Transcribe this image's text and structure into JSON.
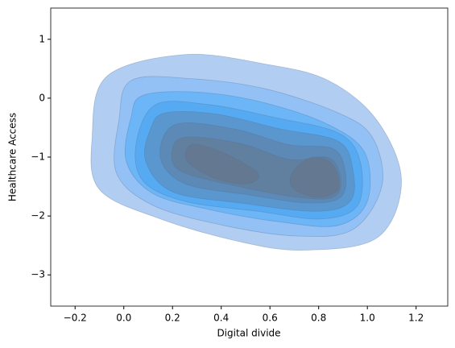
{
  "chart_data": {
    "type": "kde",
    "x_label": "Digital divide",
    "y_label": "Healthcare Access",
    "xlim": [
      -0.3,
      1.33
    ],
    "ylim": [
      -3.53,
      1.53
    ],
    "xticks": [
      {
        "value": -0.2,
        "label": "−0.2"
      },
      {
        "value": 0.0,
        "label": "0.0"
      },
      0.2,
      0.4,
      0.6,
      0.8,
      {
        "value": 1.0,
        "label": "1.0"
      },
      1.2
    ],
    "yticks": [
      1,
      0,
      {
        "value": -1,
        "label": "−1"
      },
      {
        "value": -2,
        "label": "−2"
      },
      {
        "value": -3,
        "label": "−3"
      }
    ],
    "contours": [
      {
        "color": "#b1cdf1",
        "x": [
          -0.07,
          0.25,
          0.58,
          0.84,
          1.04,
          1.14,
          1.04,
          0.74,
          0.48,
          0.15,
          -0.1,
          -0.13
        ],
        "y": [
          0.37,
          0.74,
          0.58,
          0.3,
          -0.38,
          -1.41,
          -2.37,
          -2.58,
          -2.44,
          -2.05,
          -1.55,
          -0.66
        ]
      },
      {
        "color": "#93c1f5",
        "x": [
          0.03,
          0.28,
          0.58,
          0.88,
          1.02,
          1.06,
          0.94,
          0.71,
          0.41,
          0.12,
          -0.03,
          -0.02
        ],
        "y": [
          0.3,
          0.33,
          0.16,
          -0.25,
          -0.66,
          -1.48,
          -2.23,
          -2.34,
          -2.16,
          -1.82,
          -1.27,
          -0.38
        ]
      },
      {
        "color": "#6cb5f7",
        "x": [
          0.08,
          0.31,
          0.58,
          0.84,
          0.99,
          1.0,
          0.88,
          0.64,
          0.35,
          0.12,
          0.01,
          0.03
        ],
        "y": [
          0.05,
          0.1,
          -0.08,
          -0.45,
          -0.93,
          -1.75,
          -2.16,
          -2.1,
          -1.89,
          -1.62,
          -1.07,
          -0.32
        ]
      },
      {
        "color": "#56aaf2",
        "x": [
          0.13,
          0.35,
          0.61,
          0.88,
          0.97,
          0.96,
          0.81,
          0.55,
          0.25,
          0.08,
          0.05
        ],
        "y": [
          -0.11,
          -0.11,
          -0.32,
          -0.59,
          -1.07,
          -1.82,
          -2.05,
          -1.92,
          -1.75,
          -1.41,
          -0.79
        ]
      },
      {
        "color": "#5a97cf",
        "x": [
          0.17,
          0.38,
          0.64,
          0.88,
          0.94,
          0.93,
          0.79,
          0.48,
          0.2,
          0.09,
          0.11
        ],
        "y": [
          -0.25,
          -0.27,
          -0.52,
          -0.73,
          -1.21,
          -1.75,
          -1.92,
          -1.78,
          -1.59,
          -1.07,
          -0.52
        ]
      },
      {
        "color": "#5d89b6",
        "x": [
          0.21,
          0.45,
          0.68,
          0.86,
          0.91,
          0.89,
          0.76,
          0.51,
          0.25,
          0.15
        ],
        "y": [
          -0.45,
          -0.52,
          -0.79,
          -0.86,
          -1.27,
          -1.68,
          -1.78,
          -1.64,
          -1.45,
          -1.0
        ]
      },
      {
        "color": "#61809f",
        "x": [
          0.26,
          0.48,
          0.68,
          0.84,
          0.89,
          0.86,
          0.71,
          0.45,
          0.23,
          0.2
        ],
        "y": [
          -0.66,
          -0.77,
          -1.04,
          -1.01,
          -1.37,
          -1.68,
          -1.68,
          -1.48,
          -1.23,
          -0.86
        ]
      },
      {
        "color": "#647892",
        "x": [
          0.28,
          0.41,
          0.55,
          0.51,
          0.38,
          0.26
        ],
        "y": [
          -0.79,
          -0.93,
          -1.27,
          -1.45,
          -1.37,
          -1.07
        ]
      },
      {
        "color": "#647892",
        "x": [
          0.78,
          0.86,
          0.88,
          0.79,
          0.69,
          0.7
        ],
        "y": [
          -1.0,
          -1.14,
          -1.55,
          -1.68,
          -1.51,
          -1.21
        ]
      }
    ]
  }
}
